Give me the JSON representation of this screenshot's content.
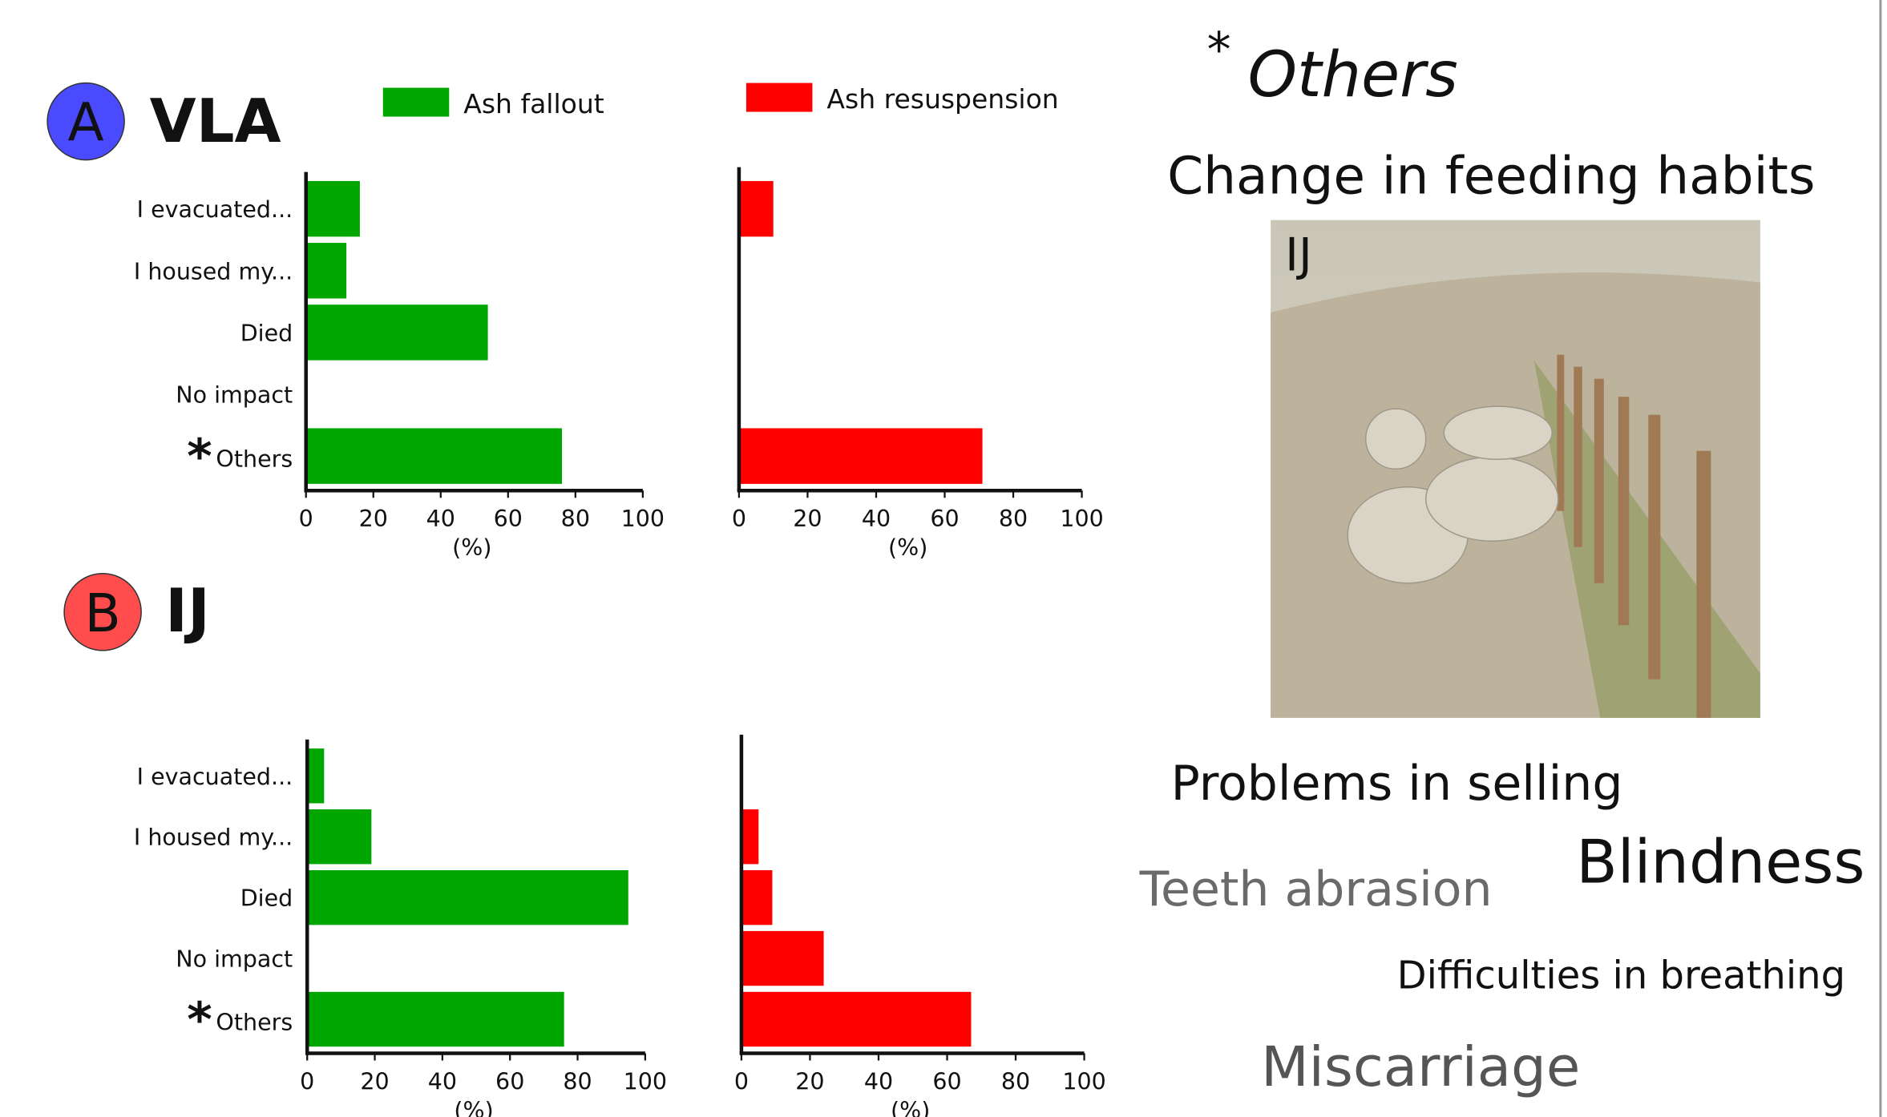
{
  "panels": [
    {
      "letter": "A",
      "name": "VLA",
      "color": "#4a4aff"
    },
    {
      "letter": "B",
      "name": "IJ",
      "color": "#ff4d4d"
    }
  ],
  "others_mark": "*",
  "chart_data": [
    {
      "type": "bar",
      "orientation": "horizontal",
      "legend": "Ash fallout",
      "color": "#00a600",
      "categories": [
        "I evacuated...",
        "I housed my...",
        "Died",
        "No impact",
        "Others"
      ],
      "values": [
        16,
        12,
        54,
        0,
        76
      ],
      "xlabel": "(%)",
      "xlim": [
        0,
        100
      ],
      "xticks": [
        0,
        20,
        40,
        60,
        80,
        100
      ]
    },
    {
      "type": "bar",
      "orientation": "horizontal",
      "legend": "Ash resuspension",
      "color": "#ff0000",
      "values": [
        10,
        0,
        0,
        0,
        71
      ],
      "xlabel": "(%)",
      "xlim": [
        0,
        100
      ],
      "xticks": [
        0,
        20,
        40,
        60,
        80,
        100
      ]
    },
    {
      "type": "bar",
      "orientation": "horizontal",
      "color": "#00a600",
      "categories": [
        "I evacuated...",
        "I housed my...",
        "Died",
        "No impact",
        "Others"
      ],
      "values": [
        5,
        19,
        95,
        0,
        76
      ],
      "xlabel": "(%)",
      "xlim": [
        0,
        100
      ],
      "xticks": [
        0,
        20,
        40,
        60,
        80,
        100
      ]
    },
    {
      "type": "bar",
      "orientation": "horizontal",
      "color": "#ff0000",
      "values": [
        0,
        5,
        9,
        24,
        67
      ],
      "xlabel": "(%)",
      "xlim": [
        0,
        100
      ],
      "xticks": [
        0,
        20,
        40,
        60,
        80,
        100
      ]
    }
  ],
  "word_cloud": {
    "title": "Others",
    "words": [
      {
        "text": "Change in feeding habits",
        "color": "#111111"
      },
      {
        "text": "Problems in selling",
        "color": "#111111"
      },
      {
        "text": "Blindness",
        "color": "#111111"
      },
      {
        "text": "Teeth abrasion",
        "color": "#6a6a6a"
      },
      {
        "text": "Difficulties in breathing",
        "color": "#111111"
      },
      {
        "text": "Miscarriage",
        "color": "#555555"
      }
    ]
  },
  "photo": {
    "label": "IJ"
  }
}
